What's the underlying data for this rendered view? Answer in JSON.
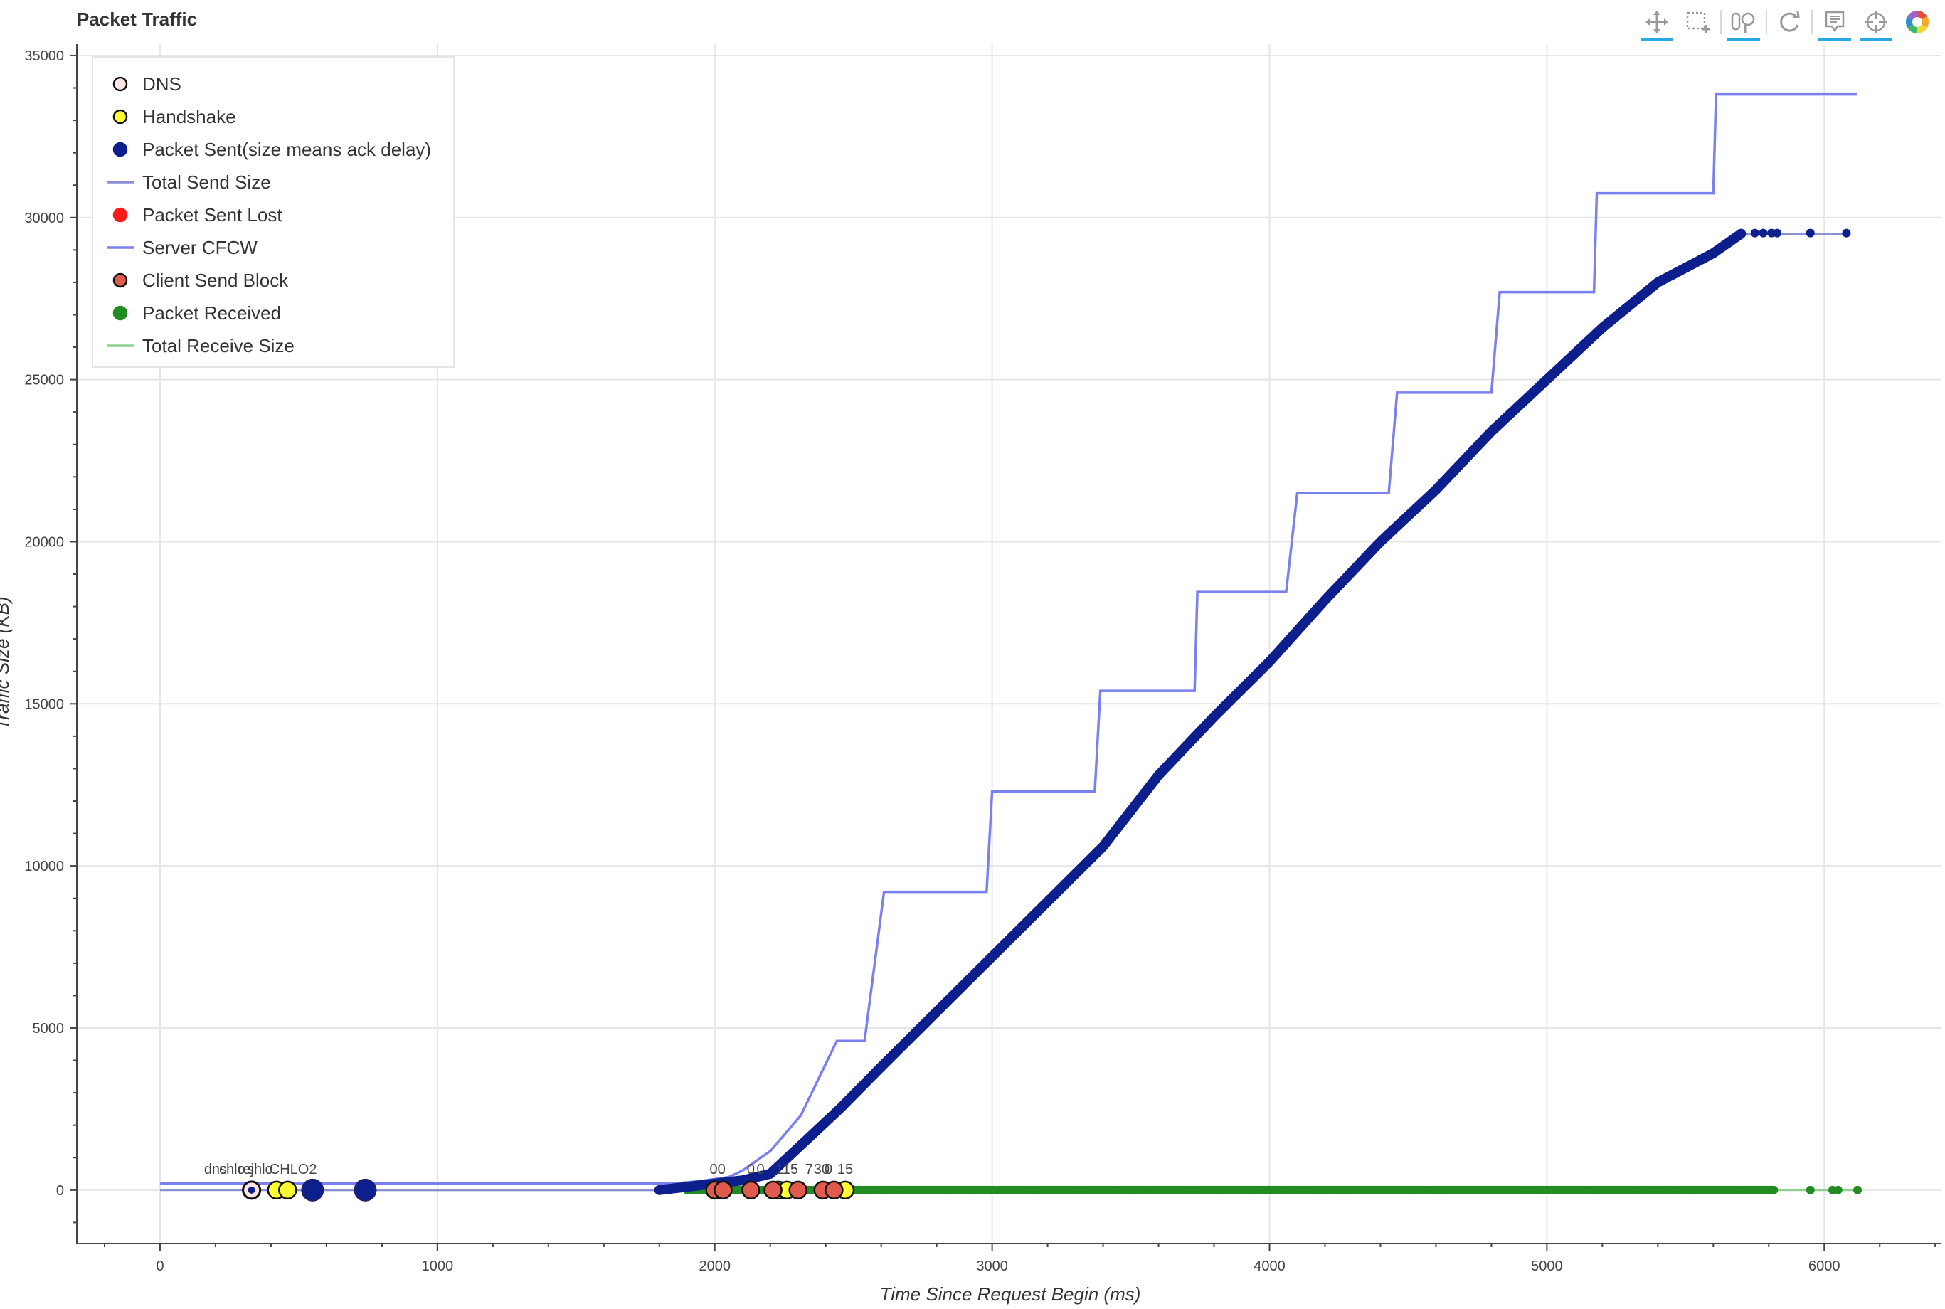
{
  "title": "Packet Traffic",
  "toolbar": {
    "tools": [
      {
        "name": "pan-tool",
        "icon": "move-icon",
        "active": true
      },
      {
        "name": "box-zoom-tool",
        "icon": "box-zoom-icon",
        "active": false
      },
      {
        "name": "wheel-zoom-tool",
        "icon": "wheel-zoom-icon",
        "active": true
      },
      {
        "name": "reset-tool",
        "icon": "reset-icon",
        "active": false
      },
      {
        "name": "hover-tool",
        "icon": "hover-icon",
        "active": true
      },
      {
        "name": "crosshair-tool",
        "icon": "crosshair-icon",
        "active": true
      },
      {
        "name": "bokeh-logo",
        "icon": "bokeh-logo-icon",
        "active": false
      }
    ]
  },
  "chart_data": {
    "type": "scatter",
    "title": "Packet Traffic",
    "xlabel": "Time Since Request Begin (ms)",
    "ylabel": "Traffic Size (KB)",
    "xlim": [
      -300,
      6420
    ],
    "ylim": [
      -1650,
      35350
    ],
    "x_ticks": [
      0,
      1000,
      2000,
      3000,
      4000,
      5000,
      6000
    ],
    "y_ticks": [
      0,
      5000,
      10000,
      15000,
      20000,
      25000,
      30000,
      35000
    ],
    "grid": true,
    "legend_position": "top-left",
    "colors": {
      "dns": "#ffe4e1",
      "handshake": "#ffff33",
      "packet_sent": "#0d1f8c",
      "total_send": "#8b8fd8",
      "lost": "#ff1a1a",
      "server_cfcw": "#7a80ee",
      "client_block": "#e05a4e",
      "received": "#228b22",
      "total_receive": "#8fd08f",
      "grid": "#e6e6e6",
      "axis": "#444444"
    },
    "legend": [
      {
        "label": "DNS",
        "kind": "circle",
        "color": "#ffe4e1",
        "stroke": "#111111"
      },
      {
        "label": "Handshake",
        "kind": "circle",
        "color": "#ffff33",
        "stroke": "#111111"
      },
      {
        "label": "Packet Sent(size means ack delay)",
        "kind": "circle",
        "color": "#0d1f8c",
        "stroke": "#0d1f8c"
      },
      {
        "label": "Total Send Size",
        "kind": "line",
        "color": "#8b8fd8"
      },
      {
        "label": "Packet Sent Lost",
        "kind": "circle",
        "color": "#ff1a1a",
        "stroke": "#ff1a1a"
      },
      {
        "label": "Server CFCW",
        "kind": "line",
        "color": "#7a80ee"
      },
      {
        "label": "Client Send Block",
        "kind": "circle",
        "color": "#e05a4e",
        "stroke": "#111111"
      },
      {
        "label": "Packet Received",
        "kind": "circle",
        "color": "#228b22",
        "stroke": "#228b22"
      },
      {
        "label": "Total Receive Size",
        "kind": "line",
        "color": "#8fd08f"
      }
    ],
    "series": [
      {
        "name": "Server CFCW",
        "type": "step-line",
        "points": [
          [
            0,
            200
          ],
          [
            1850,
            200
          ],
          [
            1950,
            280
          ],
          [
            2050,
            400
          ],
          [
            2100,
            600
          ],
          [
            2200,
            1200
          ],
          [
            2310,
            2300
          ],
          [
            2440,
            4600
          ],
          [
            2540,
            4600
          ],
          [
            2610,
            9200
          ],
          [
            2980,
            9200
          ],
          [
            3000,
            12300
          ],
          [
            3370,
            12300
          ],
          [
            3390,
            15400
          ],
          [
            3730,
            15400
          ],
          [
            3740,
            18450
          ],
          [
            4060,
            18450
          ],
          [
            4100,
            21500
          ],
          [
            4430,
            21500
          ],
          [
            4460,
            24600
          ],
          [
            4800,
            24600
          ],
          [
            4830,
            27700
          ],
          [
            5170,
            27700
          ],
          [
            5180,
            30750
          ],
          [
            5600,
            30750
          ],
          [
            5610,
            33800
          ],
          [
            6120,
            33800
          ]
        ]
      },
      {
        "name": "Total Send Size",
        "type": "line",
        "points": [
          [
            0,
            0
          ],
          [
            1800,
            0
          ],
          [
            1900,
            100
          ],
          [
            2000,
            200
          ],
          [
            2100,
            300
          ],
          [
            2200,
            500
          ],
          [
            2300,
            1300
          ],
          [
            2450,
            2500
          ],
          [
            2600,
            3800
          ],
          [
            2800,
            5500
          ],
          [
            3000,
            7200
          ],
          [
            3200,
            8900
          ],
          [
            3400,
            10600
          ],
          [
            3600,
            12800
          ],
          [
            3800,
            14600
          ],
          [
            4000,
            16300
          ],
          [
            4200,
            18200
          ],
          [
            4400,
            20000
          ],
          [
            4600,
            21600
          ],
          [
            4800,
            23400
          ],
          [
            5000,
            25000
          ],
          [
            5200,
            26600
          ],
          [
            5400,
            28000
          ],
          [
            5600,
            28900
          ],
          [
            5700,
            29500
          ],
          [
            6080,
            29500
          ]
        ]
      },
      {
        "name": "Packet Sent(size means ack delay)",
        "type": "scatter-dense",
        "points": [
          [
            1800,
            0
          ],
          [
            1900,
            100
          ],
          [
            2000,
            200
          ],
          [
            2100,
            300
          ],
          [
            2200,
            500
          ],
          [
            2300,
            1300
          ],
          [
            2450,
            2500
          ],
          [
            2600,
            3800
          ],
          [
            2800,
            5500
          ],
          [
            3000,
            7200
          ],
          [
            3200,
            8900
          ],
          [
            3400,
            10600
          ],
          [
            3600,
            12800
          ],
          [
            3800,
            14600
          ],
          [
            4000,
            16300
          ],
          [
            4200,
            18200
          ],
          [
            4400,
            20000
          ],
          [
            4600,
            21600
          ],
          [
            4800,
            23400
          ],
          [
            5000,
            25000
          ],
          [
            5200,
            26600
          ],
          [
            5400,
            28000
          ],
          [
            5600,
            28900
          ],
          [
            5700,
            29500
          ]
        ],
        "extra_points": [
          [
            550,
            0
          ],
          [
            740,
            0
          ],
          [
            5750,
            29520
          ],
          [
            5780,
            29520
          ],
          [
            5810,
            29520
          ],
          [
            5830,
            29520
          ],
          [
            5950,
            29520
          ],
          [
            6080,
            29520
          ]
        ]
      },
      {
        "name": "Total Receive Size",
        "type": "line",
        "points": [
          [
            330,
            0
          ],
          [
            6120,
            0
          ]
        ]
      },
      {
        "name": "Packet Received",
        "type": "scatter-dense",
        "points": [
          [
            1900,
            0
          ],
          [
            5820,
            0
          ]
        ],
        "extra_points": [
          [
            5950,
            0
          ],
          [
            6030,
            0
          ],
          [
            6050,
            0
          ],
          [
            6120,
            0
          ]
        ]
      },
      {
        "name": "DNS",
        "type": "scatter",
        "points": [
          [
            330,
            0
          ]
        ]
      },
      {
        "name": "Handshake",
        "type": "scatter",
        "points": [
          [
            420,
            0
          ],
          [
            460,
            0
          ],
          [
            2230,
            0
          ],
          [
            2260,
            0
          ],
          [
            2470,
            0
          ]
        ]
      },
      {
        "name": "Client Send Block",
        "type": "scatter",
        "points": [
          [
            2000,
            0
          ],
          [
            2030,
            0
          ],
          [
            2130,
            0
          ],
          [
            2210,
            0
          ],
          [
            2300,
            0
          ],
          [
            2390,
            0
          ],
          [
            2430,
            0
          ]
        ]
      }
    ],
    "annotations": [
      {
        "text": "dns",
        "x": 200,
        "y": 500
      },
      {
        "text": "chlo",
        "x": 260,
        "y": 500
      },
      {
        "text": "rej",
        "x": 310,
        "y": 500
      },
      {
        "text": "shlo",
        "x": 360,
        "y": 500
      },
      {
        "text": "CHLO2",
        "x": 480,
        "y": 500
      },
      {
        "text": "00",
        "x": 2010,
        "y": 500
      },
      {
        "text": "0",
        "x": 2130,
        "y": 500
      },
      {
        "text": "0",
        "x": 2165,
        "y": 500
      },
      {
        "text": "115",
        "x": 2260,
        "y": 500
      },
      {
        "text": "7",
        "x": 2340,
        "y": 500
      },
      {
        "text": "30",
        "x": 2385,
        "y": 500
      },
      {
        "text": "0",
        "x": 2410,
        "y": 500
      },
      {
        "text": "15",
        "x": 2470,
        "y": 500
      }
    ]
  }
}
